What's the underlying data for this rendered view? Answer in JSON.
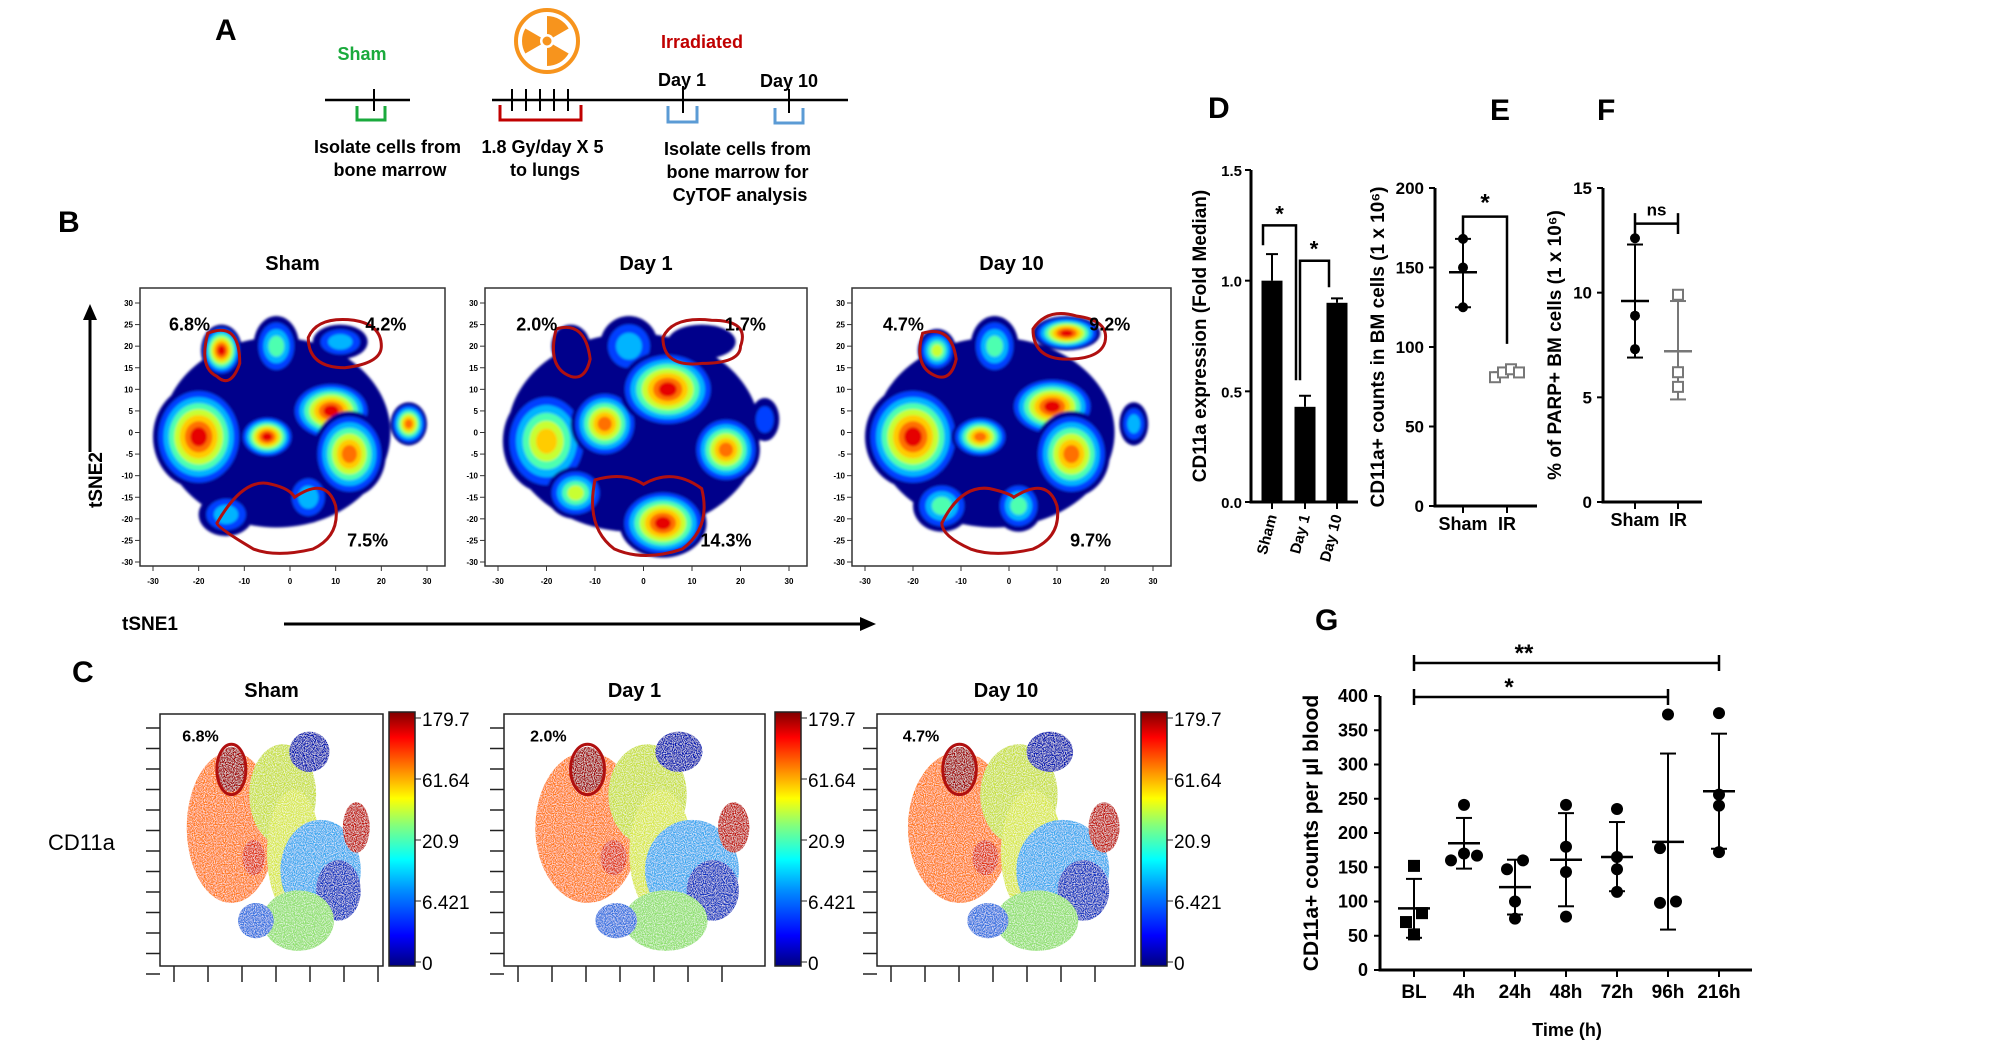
{
  "panel_labels": {
    "a": "A",
    "b": "B",
    "c": "C",
    "d": "D",
    "e": "E",
    "f": "F",
    "g": "G"
  },
  "panel_a": {
    "sham_label": "Sham",
    "irradiated_label": "Irradiated",
    "day1_label": "Day 1",
    "day10_label": "Day 10",
    "sham_caption": [
      "Isolate cells from",
      "bone marrow"
    ],
    "dose_caption": [
      "1.8 Gy/day X 5",
      "to lungs"
    ],
    "ir_caption": [
      "Isolate cells from",
      "bone marrow for",
      "CyTOF analysis"
    ],
    "radiation_icon": "radiation-hazard-icon",
    "colors": {
      "sham": "#1aaa3c",
      "irradiated": "#c00000",
      "dose_bracket": "#c00000",
      "sample_bracket": "#5b9bd5",
      "radiation": "#f7941d"
    }
  },
  "panel_b": {
    "x_axis_label": "tSNE1",
    "y_axis_label": "tSNE2",
    "y_ticks": [
      "30",
      "25",
      "20",
      "15",
      "10",
      "5",
      "0",
      "-5",
      "-10",
      "-15",
      "-20",
      "-25",
      "-30"
    ],
    "x_ticks": [
      "-30",
      "-20",
      "-10",
      "0",
      "10",
      "20",
      "30"
    ],
    "panels": [
      {
        "title": "Sham",
        "gates": [
          "6.8%",
          "4.2%",
          "7.5%"
        ]
      },
      {
        "title": "Day 1",
        "gates": [
          "2.0%",
          "1.7%",
          "14.3%"
        ]
      },
      {
        "title": "Day 10",
        "gates": [
          "4.7%",
          "9.2%",
          "9.7%"
        ]
      }
    ]
  },
  "panel_c": {
    "row_label": "CD11a",
    "colorbar_ticks": [
      "179.7",
      "61.64",
      "20.9",
      "6.421",
      "0"
    ],
    "panels": [
      {
        "title": "Sham",
        "gate": "6.8%"
      },
      {
        "title": "Day 1",
        "gate": "2.0%"
      },
      {
        "title": "Day 10",
        "gate": "4.7%"
      }
    ]
  },
  "chart_data": [
    {
      "panel": "D",
      "type": "bar",
      "categories": [
        "Sham",
        "Day 1",
        "Day 10"
      ],
      "values": [
        1.0,
        0.43,
        0.9
      ],
      "error_upper": [
        1.12,
        0.48,
        0.92
      ],
      "ylabel": "CD11a expression (Fold Median)",
      "xlabel": "",
      "ylim": [
        0,
        1.5
      ],
      "y_ticks": [
        "0.0",
        "0.5",
        "1.0",
        "1.5"
      ],
      "significance": [
        {
          "from": "Sham",
          "to": "Day 1",
          "label": "*"
        },
        {
          "from": "Day 1",
          "to": "Day 10",
          "label": "*"
        }
      ],
      "bar_color": "#000000"
    },
    {
      "panel": "E",
      "type": "scatter",
      "categories": [
        "Sham",
        "IR"
      ],
      "series": [
        {
          "category": "Sham",
          "points": [
            168,
            150,
            125
          ],
          "mean": 147,
          "sd_upper": 168,
          "sd_lower": 125,
          "marker": "filled-circle"
        },
        {
          "category": "IR",
          "points": [
            81,
            84,
            86,
            84
          ],
          "mean": 84,
          "sd_upper": 85,
          "sd_lower": 83,
          "marker": "open-square"
        }
      ],
      "ylabel": "CD11a+ counts in BM cells (1 x 10⁶)",
      "ylim": [
        0,
        200
      ],
      "y_ticks": [
        "0",
        "50",
        "100",
        "150",
        "200"
      ],
      "significance": [
        {
          "from": "Sham",
          "to": "IR",
          "label": "*"
        }
      ]
    },
    {
      "panel": "F",
      "type": "scatter",
      "categories": [
        "Sham",
        "IR"
      ],
      "series": [
        {
          "category": "Sham",
          "points": [
            12.6,
            8.9,
            7.3
          ],
          "mean": 9.6,
          "sd_upper": 12.3,
          "sd_lower": 6.9,
          "marker": "filled-circle"
        },
        {
          "category": "IR",
          "points": [
            9.9,
            6.2,
            5.5
          ],
          "mean": 7.2,
          "sd_upper": 9.6,
          "sd_lower": 4.9,
          "marker": "open-square"
        }
      ],
      "ylabel": "% of PARP+ BM cells (1 x 10⁶)",
      "ylim": [
        0,
        15
      ],
      "y_ticks": [
        "0",
        "5",
        "10",
        "15"
      ],
      "significance": [
        {
          "from": "Sham",
          "to": "IR",
          "label": "ns"
        }
      ]
    },
    {
      "panel": "G",
      "type": "scatter",
      "categories": [
        "BL",
        "4h",
        "24h",
        "48h",
        "72h",
        "96h",
        "216h"
      ],
      "series": [
        {
          "category": "BL",
          "points": [
            152,
            83,
            70,
            52
          ],
          "mean": 90,
          "sd_upper": 133,
          "sd_lower": 47,
          "marker": "filled-square"
        },
        {
          "category": "4h",
          "points": [
            241,
            160,
            170,
            167
          ],
          "mean": 185,
          "sd_upper": 222,
          "sd_lower": 148,
          "marker": "filled-circle"
        },
        {
          "category": "24h",
          "points": [
            147,
            160,
            100,
            75
          ],
          "mean": 121,
          "sd_upper": 161,
          "sd_lower": 81,
          "marker": "filled-circle"
        },
        {
          "category": "48h",
          "points": [
            241,
            180,
            143,
            78
          ],
          "mean": 161,
          "sd_upper": 229,
          "sd_lower": 93,
          "marker": "filled-circle"
        },
        {
          "category": "72h",
          "points": [
            235,
            165,
            147,
            114
          ],
          "mean": 165,
          "sd_upper": 216,
          "sd_lower": 115,
          "marker": "filled-circle"
        },
        {
          "category": "96h",
          "points": [
            373,
            178,
            98,
            100
          ],
          "mean": 187,
          "sd_upper": 316,
          "sd_lower": 59,
          "marker": "filled-circle"
        },
        {
          "category": "216h",
          "points": [
            375,
            256,
            240,
            172
          ],
          "mean": 261,
          "sd_upper": 345,
          "sd_lower": 177,
          "marker": "filled-circle"
        }
      ],
      "ylabel": "CD11a+ counts per µl blood",
      "xlabel": "Time  (h)",
      "ylim": [
        0,
        400
      ],
      "y_ticks": [
        "0",
        "50",
        "100",
        "150",
        "200",
        "250",
        "300",
        "350",
        "400"
      ],
      "significance": [
        {
          "from": "BL",
          "to": "216h",
          "label": "**"
        },
        {
          "from": "BL",
          "to": "96h",
          "label": "*"
        }
      ]
    }
  ]
}
